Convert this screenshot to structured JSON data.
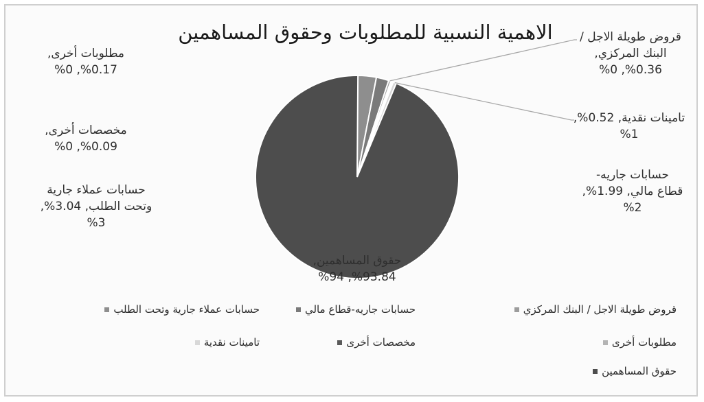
{
  "chart_data": {
    "type": "pie",
    "title": "الاهمية النسبية للمطلوبات وحقوق المساهمين",
    "slices": [
      {
        "name": "قروض طويلة الاجل / البنك المركزي",
        "value": 0.36,
        "label_lines": [
          "قروض طويلة الاجل /",
          "البنك المركزي,",
          "%0.36, %0"
        ],
        "color": "#9c9c9c"
      },
      {
        "name": "حسابات جاريه-قطاع مالي",
        "value": 1.99,
        "label_lines": [
          "حسابات جاريه-",
          "قطاع مالي, 1.99%,",
          "%2"
        ],
        "color": "#7a7a7a"
      },
      {
        "name": "حسابات عملاء جارية وتحت الطلب",
        "value": 3.04,
        "label_lines": [
          "حسابات عملاء جارية",
          "وتحت الطلب, 3.04%,",
          "%3"
        ],
        "color": "#8e8e8e"
      },
      {
        "name": "مطلوبات أخرى",
        "value": 0.17,
        "label_lines": [
          "مطلوبات أخرى,",
          "%0.17, %0"
        ],
        "color": "#b4b4b4"
      },
      {
        "name": "مخصصات أخرى",
        "value": 0.09,
        "label_lines": [
          "مخصصات أخرى,",
          "%0.09, %0"
        ],
        "color": "#5a5a5a"
      },
      {
        "name": "تامينات نقدية",
        "value": 0.52,
        "label_lines": [
          "تامينات نقدية, 0.52%,",
          "%1"
        ],
        "color": "#d8d8d8"
      },
      {
        "name": "حقوق المساهمين",
        "value": 93.84,
        "label_lines": [
          "حقوق المساهمين,",
          "%93.84, %94"
        ],
        "color": "#4d4d4d"
      }
    ],
    "legend_rows": [
      [
        "قروض طويلة الاجل / البنك المركزي",
        "حسابات جاريه-قطاع مالي",
        "حسابات عملاء جارية وتحت الطلب"
      ],
      [
        "مطلوبات أخرى",
        "مخصصات أخرى",
        "تامينات نقدية"
      ],
      [
        "حقوق المساهمين"
      ]
    ],
    "legend_placement": "bottom"
  }
}
